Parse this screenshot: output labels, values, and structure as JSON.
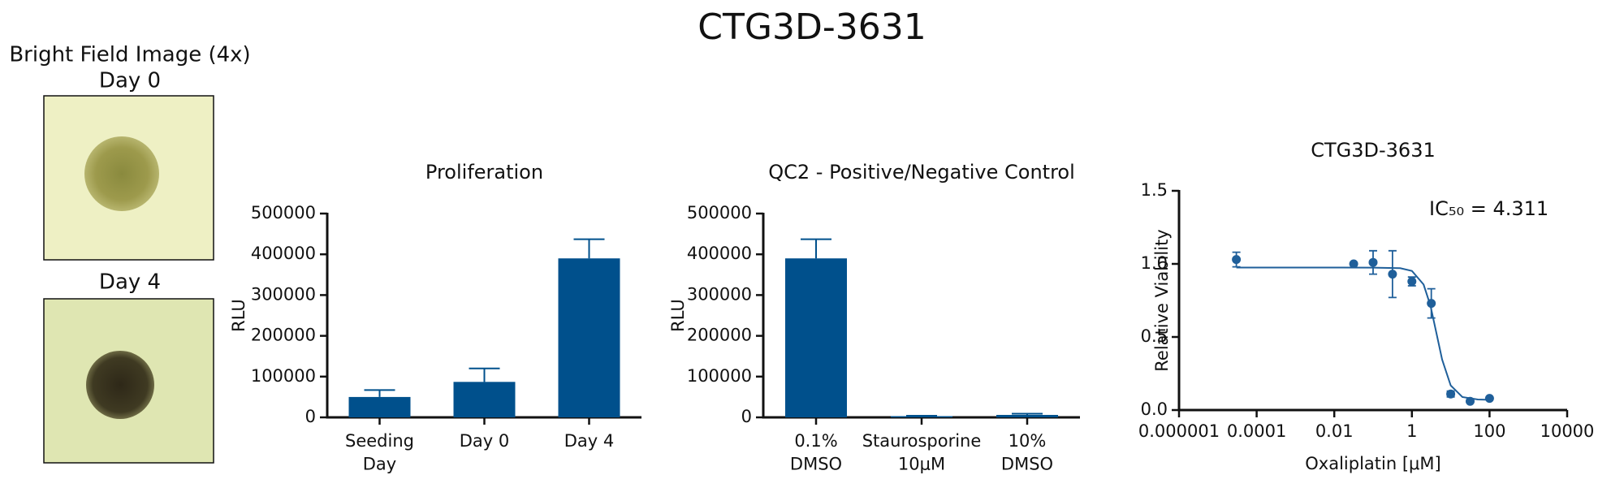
{
  "title": "CTG3D-3631",
  "images": {
    "title": "Bright Field Image (4x)",
    "labels": [
      "Day 0",
      "Day 4"
    ]
  },
  "chart_data": [
    {
      "type": "bar",
      "title": "Proliferation",
      "y_label": "RLU",
      "color": "#00508c",
      "categories": [
        "Seeding\nDay",
        "Day 0",
        "Day 4"
      ],
      "values": [
        50000,
        87000,
        390000
      ],
      "errors": [
        17000,
        33000,
        47000
      ],
      "ylim": [
        0,
        500000
      ],
      "yticks": [
        0,
        100000,
        200000,
        300000,
        400000,
        500000
      ]
    },
    {
      "type": "bar",
      "title": "QC2 - Positive/Negative Control",
      "y_label": "RLU",
      "color": "#00508c",
      "categories": [
        "0.1%\nDMSO",
        "Staurosporine\n10μM",
        "10%\nDMSO"
      ],
      "values": [
        390000,
        3000,
        6000
      ],
      "errors": [
        47000,
        1000,
        3000
      ],
      "ylim": [
        0,
        500000
      ],
      "yticks": [
        0,
        100000,
        200000,
        300000,
        400000,
        500000
      ]
    },
    {
      "type": "scatter",
      "title": "CTG3D-3631",
      "x_label": "Oxaliplatin [μM]",
      "y_label": "Relative Viability",
      "annotation": "IC₅₀ = 4.311",
      "color": "#1f5f9a",
      "log_x": true,
      "x": [
        3e-05,
        0.0316,
        0.1,
        0.316,
        1,
        3.16,
        10,
        31.6,
        100
      ],
      "values": [
        1.03,
        1.0,
        1.01,
        0.93,
        0.88,
        0.73,
        0.11,
        0.06,
        0.08
      ],
      "errors": [
        0.05,
        null,
        0.08,
        0.16,
        0.03,
        0.1,
        0.02,
        null,
        null
      ],
      "fit": {
        "x": [
          3e-05,
          0.01,
          0.1,
          0.5,
          1,
          2,
          3,
          4.311,
          6,
          10,
          20,
          50,
          100
        ],
        "y": [
          0.975,
          0.975,
          0.974,
          0.971,
          0.952,
          0.859,
          0.715,
          0.523,
          0.346,
          0.168,
          0.089,
          0.072,
          0.07
        ]
      },
      "xlim": [
        1e-06,
        10000
      ],
      "xticks": [
        {
          "value": 1e-06,
          "label": "0.000001"
        },
        0.0001,
        0.01,
        1,
        100,
        10000
      ],
      "ylim": [
        0,
        1.5
      ],
      "yticks": [
        {
          "value": 0,
          "label": "0.0"
        },
        0.5,
        {
          "value": 1,
          "label": "1.0"
        },
        1.5
      ]
    }
  ]
}
